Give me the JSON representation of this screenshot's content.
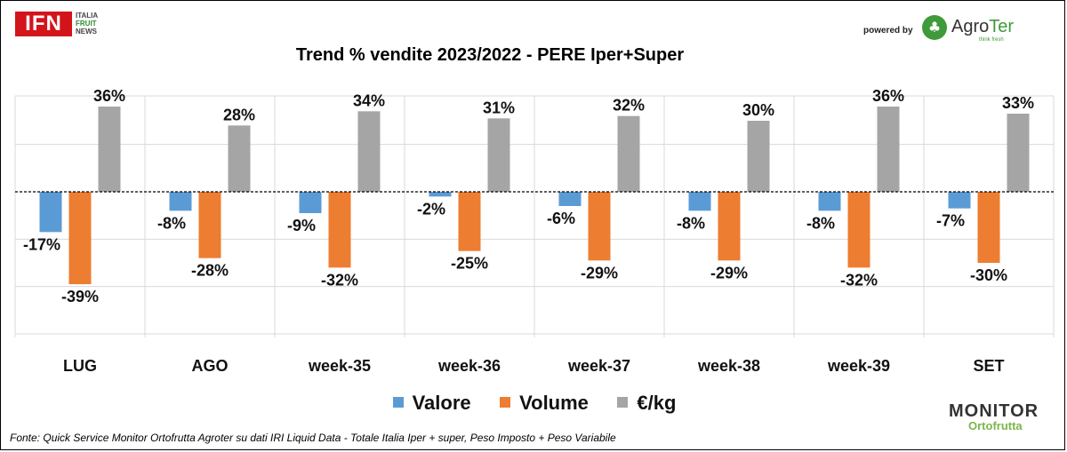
{
  "branding": {
    "ifn_logo": "IFN",
    "ifn_sub": [
      "ITALIA",
      "FRUIT",
      "NEWS"
    ],
    "powered_by": "powered by",
    "agroter_name_a": "Agro",
    "agroter_name_b": "Ter",
    "agroter_tagline": "think fresh",
    "monitor_line1": "MONITOR",
    "monitor_line2": "Ortofrutta"
  },
  "source_note": "Fonte: Quick Service Monitor Ortofrutta Agroter su dati IRI Liquid Data - Totale Italia Iper + super, Peso Imposto + Peso Variabile",
  "colors": {
    "valore": "#5b9bd5",
    "volume": "#ed7d31",
    "eurokg": "#a5a5a5"
  },
  "chart_data": {
    "type": "bar",
    "title": "Trend % vendite 2023/2022 - PERE Iper+Super",
    "categories": [
      "LUG",
      "AGO",
      "week-35",
      "week-36",
      "week-37",
      "week-38",
      "week-39",
      "SET"
    ],
    "series": [
      {
        "name": "Valore",
        "values": [
          -17,
          -8,
          -9,
          -2,
          -6,
          -8,
          -8,
          -7
        ],
        "labels": [
          "-17%",
          "-8%",
          "-9%",
          "-2%",
          "-6%",
          "-8%",
          "-8%",
          "-7%"
        ]
      },
      {
        "name": "Volume",
        "values": [
          -39,
          -28,
          -32,
          -25,
          -29,
          -29,
          -32,
          -30
        ],
        "labels": [
          "-39%",
          "-28%",
          "-32%",
          "-25%",
          "-29%",
          "-29%",
          "-32%",
          "-30%"
        ]
      },
      {
        "name": "€/kg",
        "values": [
          36,
          28,
          34,
          31,
          32,
          30,
          36,
          33
        ],
        "labels": [
          "36%",
          "28%",
          "34%",
          "31%",
          "32%",
          "30%",
          "36%",
          "33%"
        ]
      }
    ],
    "ylim": [
      -60,
      40
    ],
    "grid": true,
    "legend_position": "bottom"
  }
}
